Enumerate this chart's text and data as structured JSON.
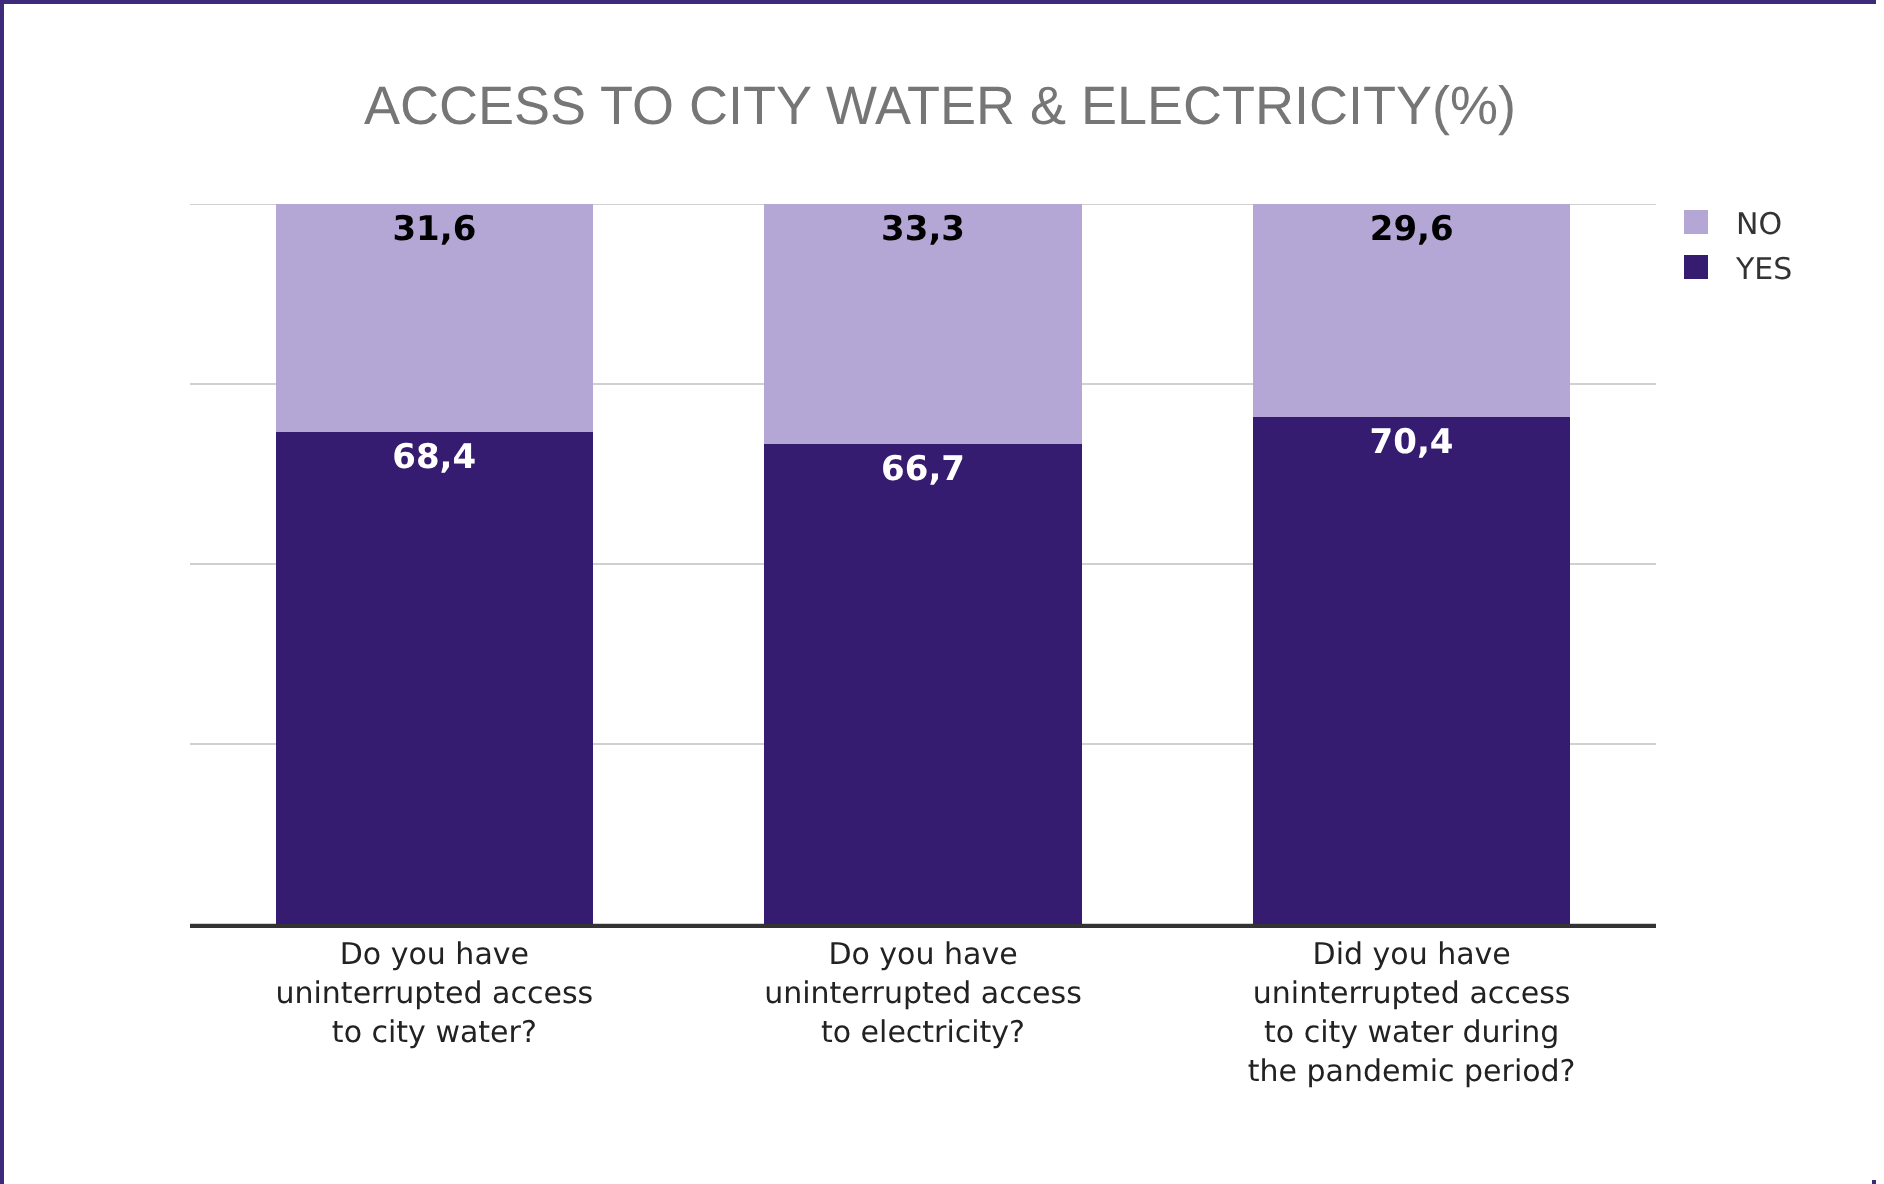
{
  "chart_data": {
    "type": "bar",
    "title": "ACCESS TO CITY WATER & ELECTRICITY(%)",
    "categories": [
      "Do you have uninterrupted access to city water?",
      "Do you have uninterrupted access to electricity?",
      "Did you have uninterrupted access to city water during the pandemic period?"
    ],
    "stacked": true,
    "ylim": [
      0,
      100
    ],
    "yticks": [
      {
        "value": 0,
        "label": null
      },
      {
        "value": 25,
        "label": null
      },
      {
        "value": 50,
        "label": null
      },
      {
        "value": 75,
        "label": null
      },
      {
        "value": 100,
        "label": null
      }
    ],
    "grid": "y",
    "legend": "top right",
    "tick_labels": "x",
    "series": [
      {
        "name": "YES",
        "color": "#351c71",
        "values": [
          68.4,
          66.7,
          70.4
        ],
        "value_labels": [
          "68,4",
          "66,7",
          "70,4"
        ]
      },
      {
        "name": "NO",
        "color": "#b4a7d6",
        "values": [
          31.6,
          33.3,
          29.6
        ],
        "value_labels": [
          "31,6",
          "33,3",
          "29,6"
        ]
      }
    ]
  }
}
